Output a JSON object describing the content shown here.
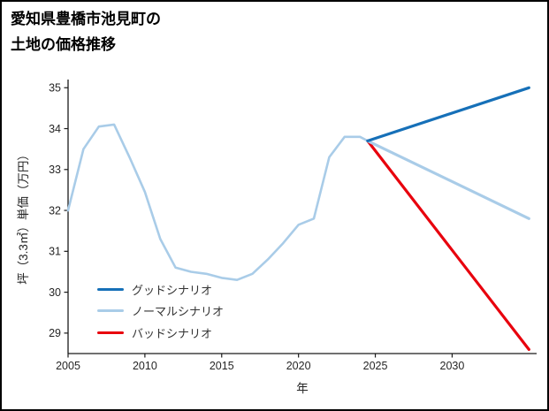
{
  "page": {
    "title_line1": "愛知県豊橋市池見町の",
    "title_line2": "土地の価格推移"
  },
  "chart_data": {
    "type": "line",
    "title": "愛知県豊橋市池見町の土地の価格推移",
    "xlabel": "年",
    "ylabel": "坪（3.3㎡）単価（万円）",
    "xlim": [
      2005,
      2035.5
    ],
    "ylim": [
      28.5,
      35.2
    ],
    "xticks": [
      2005,
      2010,
      2015,
      2020,
      2025,
      2030
    ],
    "yticks": [
      29,
      30,
      31,
      32,
      33,
      34,
      35
    ],
    "grid": false,
    "legend_position": "lower-left-inside",
    "axis_color": "#1a1a1a",
    "tick_color": "#262626",
    "series": [
      {
        "id": "price-history",
        "legend": null,
        "color": "#a9cce8",
        "width": 2.6,
        "x": [
          2005,
          2006,
          2007,
          2008,
          2009,
          2010,
          2011,
          2012,
          2013,
          2014,
          2015,
          2016,
          2017,
          2018,
          2019,
          2020,
          2021,
          2022,
          2023,
          2024,
          2024.5
        ],
        "y": [
          32.0,
          33.5,
          34.05,
          34.1,
          33.3,
          32.45,
          31.3,
          30.6,
          30.5,
          30.45,
          30.35,
          30.3,
          30.45,
          30.8,
          31.2,
          31.65,
          31.8,
          33.3,
          33.8,
          33.8,
          33.7
        ]
      },
      {
        "id": "bad-scenario",
        "legend": "バッドシナリオ",
        "color": "#e8000d",
        "width": 3.2,
        "x": [
          2024.5,
          2035
        ],
        "y": [
          33.7,
          28.6
        ]
      },
      {
        "id": "normal-scenario",
        "legend": "ノーマルシナリオ",
        "color": "#a9cce8",
        "width": 3.2,
        "x": [
          2024.5,
          2035
        ],
        "y": [
          33.7,
          31.8
        ]
      },
      {
        "id": "good-scenario",
        "legend": "グッドシナリオ",
        "color": "#1670b8",
        "width": 3.2,
        "x": [
          2024.5,
          2035
        ],
        "y": [
          33.7,
          35.0
        ]
      }
    ]
  }
}
